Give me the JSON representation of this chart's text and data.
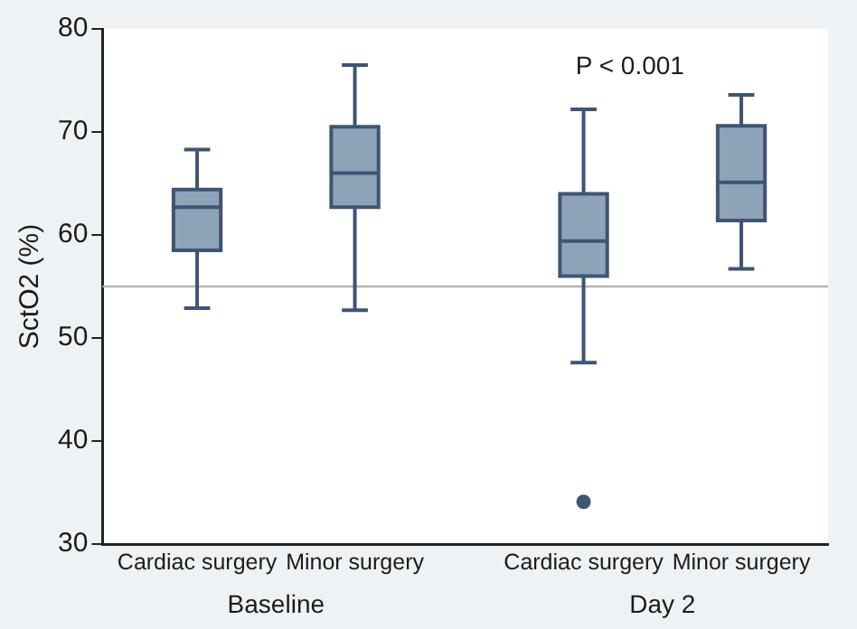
{
  "chart_data": {
    "type": "box",
    "ylabel": "SctO2 (%)",
    "categories": [
      "Cardiac surgery",
      "Minor surgery",
      "Cardiac surgery",
      "Minor surgery"
    ],
    "series": [
      {
        "color": "#8ea3b8",
        "boxes": [
          {
            "low": 52.9,
            "q1": 58.5,
            "median": 62.7,
            "q3": 64.4,
            "high": 68.3
          },
          {
            "low": 52.7,
            "q1": 62.7,
            "median": 66.0,
            "q3": 70.5,
            "high": 76.5
          },
          {
            "low": 47.6,
            "q1": 56.0,
            "median": 59.4,
            "q3": 64.0,
            "high": 72.2,
            "outliers": [
              34.1
            ]
          },
          {
            "low": 56.7,
            "q1": 61.4,
            "median": 65.1,
            "q3": 70.6,
            "high": 73.6
          }
        ]
      }
    ],
    "ylim": [
      30,
      80
    ],
    "yticks": [
      30,
      40,
      50,
      60,
      70,
      80
    ],
    "ref_lines": [
      {
        "axis": "y",
        "value": 55,
        "color": "#b4b4b4"
      }
    ],
    "annotations": [
      "P < 0.001",
      "Baseline",
      "Day 2"
    ],
    "grid": false,
    "legend": false
  }
}
